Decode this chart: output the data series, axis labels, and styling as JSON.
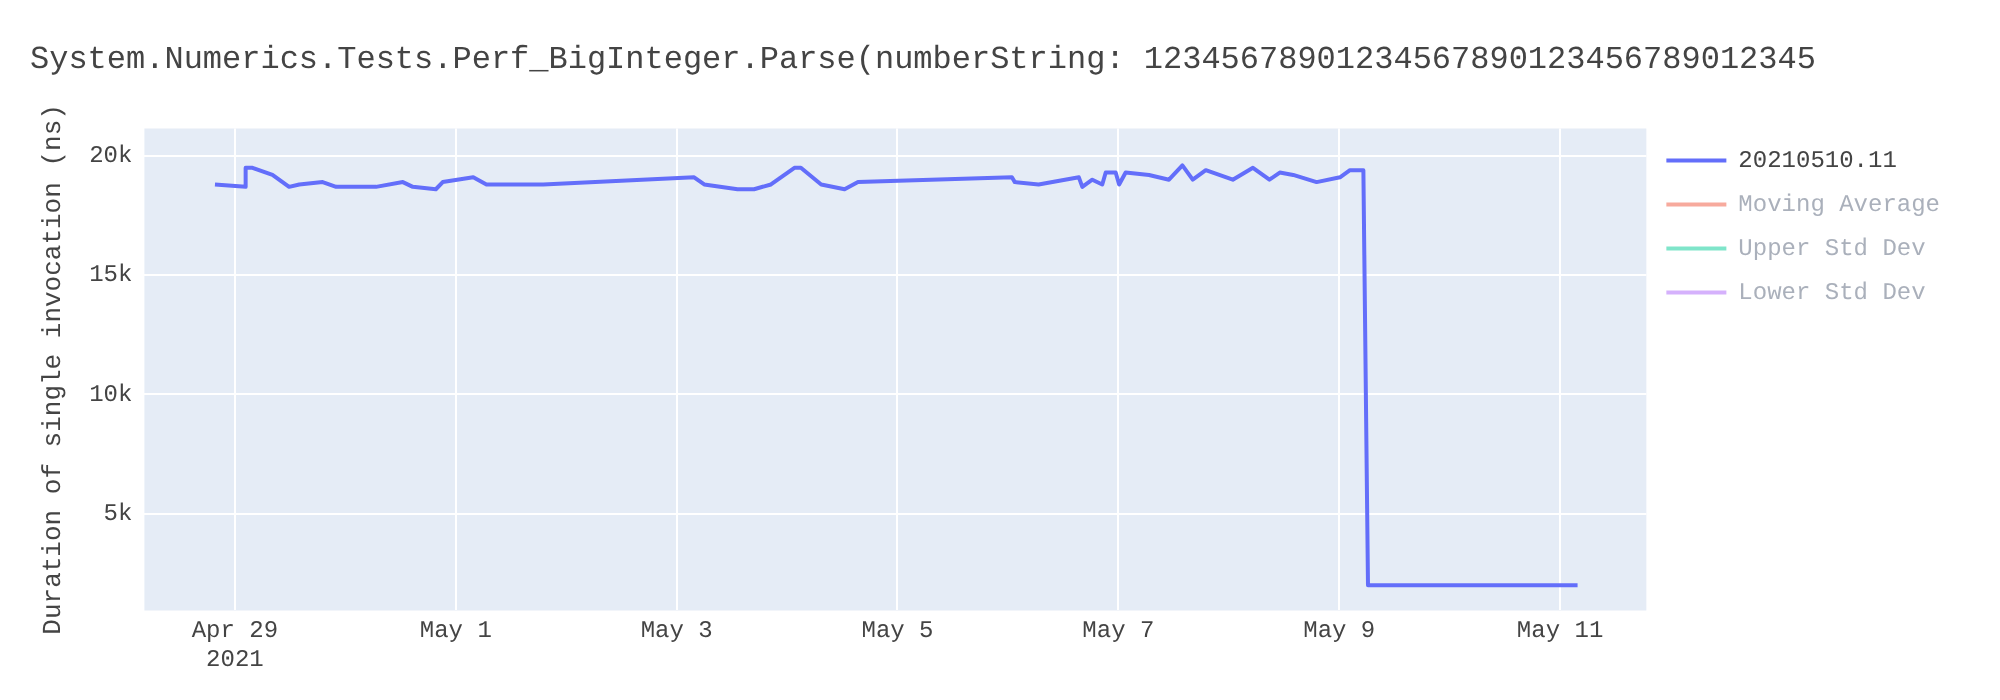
{
  "chart_data": {
    "type": "line",
    "title": "System.Numerics.Tests.Perf_BigInteger.Parse(numberString: 12345678901234567890123456789012345",
    "ylabel": "Duration of single invocation (ns)",
    "x": [
      "2021-04-28T19:40",
      "2021-04-29T02:20",
      "2021-04-29T02:20",
      "2021-04-29T03:00",
      "2021-04-29T03:50",
      "2021-04-29T08:10",
      "2021-04-29T11:47",
      "2021-04-29T14:00",
      "2021-04-29T19:04",
      "2021-04-29T22:00",
      "2021-04-30T06:40",
      "2021-04-30T12:30",
      "2021-04-30T14:40",
      "2021-04-30T19:40",
      "2021-04-30T21:10",
      "2021-05-01T03:48",
      "2021-05-01T06:40",
      "2021-05-01T19:00",
      "2021-05-03T03:48",
      "2021-05-03T06:00",
      "2021-05-03T13:14",
      "2021-05-03T16:50",
      "2021-05-03T20:30",
      "2021-05-04T01:36",
      "2021-05-04T03:00",
      "2021-05-04T07:25",
      "2021-05-04T12:30",
      "2021-05-04T15:25",
      "2021-05-06T00:52",
      "2021-05-06T01:30",
      "2021-05-06T06:40",
      "2021-05-06T15:25",
      "2021-05-06T16:10",
      "2021-05-06T18:20",
      "2021-05-06T20:30",
      "2021-05-06T21:15",
      "2021-05-06T23:25",
      "2021-05-07T00:10",
      "2021-05-07T01:35",
      "2021-05-07T06:40",
      "2021-05-07T11:00",
      "2021-05-07T13:55",
      "2021-05-07T16:10",
      "2021-05-07T19:00",
      "2021-05-08T00:52",
      "2021-05-08T05:15",
      "2021-05-08T08:50",
      "2021-05-08T11:05",
      "2021-05-08T14:00",
      "2021-05-08T19:05",
      "2021-05-09T00:10",
      "2021-05-09T02:20",
      "2021-05-09T05:15",
      "2021-05-09T06:15",
      "2021-05-11T03:48"
    ],
    "series": [
      {
        "name": "20210510.11",
        "color": "#636efa",
        "values": [
          18800,
          18700,
          19500,
          19500,
          19500,
          19200,
          18700,
          18800,
          18900,
          18700,
          18700,
          18900,
          18700,
          18600,
          18900,
          19100,
          18800,
          18800,
          19100,
          18800,
          18600,
          18600,
          18800,
          19500,
          19500,
          18800,
          18600,
          18900,
          19100,
          18900,
          18800,
          19100,
          18700,
          19000,
          18800,
          19300,
          19300,
          18800,
          19300,
          19200,
          19000,
          19600,
          19000,
          19400,
          19000,
          19500,
          19000,
          19300,
          19200,
          18900,
          19100,
          19400,
          19400,
          2000,
          2000
        ]
      },
      {
        "name": "Moving Average",
        "color": "#ef553b",
        "values": [
          null,
          null,
          null,
          null,
          null,
          null,
          null,
          null,
          null,
          null,
          null,
          null,
          null,
          null,
          null,
          null,
          null,
          null,
          null,
          null,
          null,
          null,
          null,
          null,
          null,
          null,
          null,
          null,
          null,
          null,
          null,
          null,
          null,
          null,
          null,
          null,
          null,
          null,
          null,
          null,
          null,
          null,
          null,
          null,
          null,
          null,
          null,
          null,
          null,
          null,
          null,
          null,
          null,
          null,
          null
        ]
      },
      {
        "name": "Upper Std Dev",
        "color": "#00cc96",
        "values": [
          null,
          null,
          null,
          null,
          null,
          null,
          null,
          null,
          null,
          null,
          null,
          null,
          null,
          null,
          null,
          null,
          null,
          null,
          null,
          null,
          null,
          null,
          null,
          null,
          null,
          null,
          null,
          null,
          null,
          null,
          null,
          null,
          null,
          null,
          null,
          null,
          null,
          null,
          null,
          null,
          null,
          null,
          null,
          null,
          null,
          null,
          null,
          null,
          null,
          null,
          null,
          null,
          null,
          null,
          null
        ]
      },
      {
        "name": "Lower Std Dev",
        "color": "#ab63fa",
        "values": [
          null,
          null,
          null,
          null,
          null,
          null,
          null,
          null,
          null,
          null,
          null,
          null,
          null,
          null,
          null,
          null,
          null,
          null,
          null,
          null,
          null,
          null,
          null,
          null,
          null,
          null,
          null,
          null,
          null,
          null,
          null,
          null,
          null,
          null,
          null,
          null,
          null,
          null,
          null,
          null,
          null,
          null,
          null,
          null,
          null,
          null,
          null,
          null,
          null,
          null,
          null,
          null,
          null,
          null,
          null
        ]
      }
    ],
    "xlim": [
      "2021-04-28T04:20",
      "2021-05-11T18:45"
    ],
    "xticks": [
      {
        "value": "2021-04-29",
        "label": "Apr 29\n2021"
      },
      {
        "value": "2021-05-01",
        "label": "May 1"
      },
      {
        "value": "2021-05-03",
        "label": "May 3"
      },
      {
        "value": "2021-05-05",
        "label": "May 5"
      },
      {
        "value": "2021-05-07",
        "label": "May 7"
      },
      {
        "value": "2021-05-09",
        "label": "May 9"
      },
      {
        "value": "2021-05-11",
        "label": "May 11"
      }
    ],
    "ylim": [
      950,
      21150
    ],
    "yticks": [
      {
        "value": 5000,
        "label": "5k"
      },
      {
        "value": 10000,
        "label": "10k"
      },
      {
        "value": 15000,
        "label": "15k"
      },
      {
        "value": 20000,
        "label": "20k"
      }
    ],
    "grid": true,
    "legend": "right",
    "marker": "none",
    "line_style": "solid"
  }
}
